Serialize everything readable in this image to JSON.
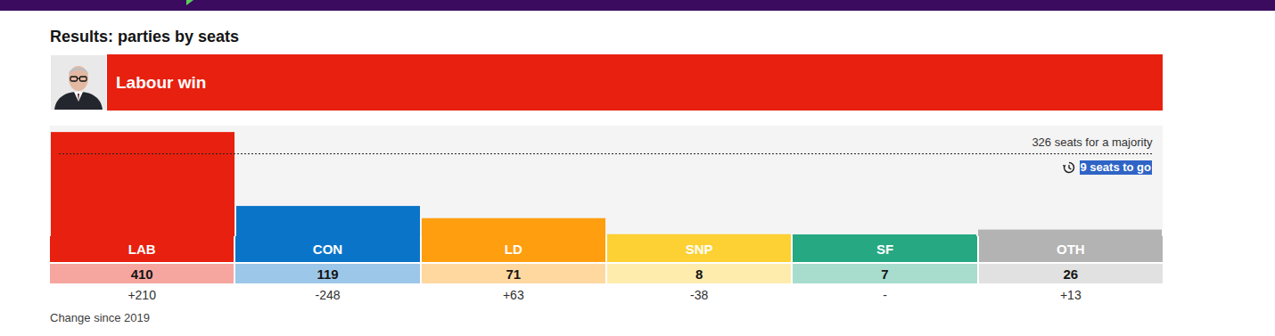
{
  "chart_data": {
    "type": "bar",
    "title": "Results: parties by seats",
    "banner": "Labour win",
    "categories": [
      "LAB",
      "CON",
      "LD",
      "SNP",
      "SF",
      "OTH"
    ],
    "values": [
      410,
      119,
      71,
      8,
      7,
      26
    ],
    "colors": [
      "#e8200f",
      "#0a74c8",
      "#ff9e0f",
      "#fdd033",
      "#26a882",
      "#b3b3b3"
    ],
    "changes": [
      210,
      -248,
      63,
      -38,
      null,
      13
    ],
    "change_labels": [
      "+210",
      "-248",
      "+63",
      "-38",
      "-",
      "+13"
    ],
    "caption": "Change since 2019",
    "annotations": [
      {
        "value": 326,
        "label": "326 seats for a majority"
      }
    ],
    "status": "9 seats to go",
    "ylim": [
      0,
      435
    ],
    "data_labels": true,
    "tick_labels": "x"
  }
}
